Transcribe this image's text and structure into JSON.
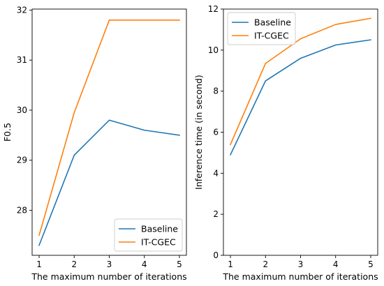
{
  "chart_data": [
    {
      "type": "line",
      "xlabel": "The maximum number of iterations",
      "ylabel": "F0.5",
      "x": [
        1,
        2,
        3,
        4,
        5
      ],
      "xticks": [
        "1",
        "2",
        "3",
        "4",
        "5"
      ],
      "yticks": [
        "28",
        "29",
        "30",
        "31",
        "32"
      ],
      "xlim": [
        0.8,
        5.2
      ],
      "ylim": [
        27.1,
        32.02
      ],
      "grid": false,
      "legend_placement": "lower-right",
      "series": [
        {
          "name": "Baseline",
          "color": "#1f77b4",
          "values": [
            27.3,
            29.1,
            29.8,
            29.6,
            29.5
          ]
        },
        {
          "name": "IT-CGEC",
          "color": "#ff7f0e",
          "values": [
            27.5,
            29.95,
            31.8,
            31.8,
            31.8
          ]
        }
      ]
    },
    {
      "type": "line",
      "xlabel": "The maximum number of iterations",
      "ylabel": "Inference time (in second)",
      "x": [
        1,
        2,
        3,
        4,
        5
      ],
      "xticks": [
        "1",
        "2",
        "3",
        "4",
        "5"
      ],
      "yticks": [
        "0",
        "2",
        "4",
        "6",
        "8",
        "10",
        "12"
      ],
      "xlim": [
        0.8,
        5.2
      ],
      "ylim": [
        0,
        12
      ],
      "grid": false,
      "legend_placement": "upper-left",
      "series": [
        {
          "name": "Baseline",
          "color": "#1f77b4",
          "values": [
            4.9,
            8.5,
            9.6,
            10.25,
            10.5
          ]
        },
        {
          "name": "IT-CGEC",
          "color": "#ff7f0e",
          "values": [
            5.4,
            9.35,
            10.55,
            11.25,
            11.55
          ]
        }
      ]
    }
  ]
}
